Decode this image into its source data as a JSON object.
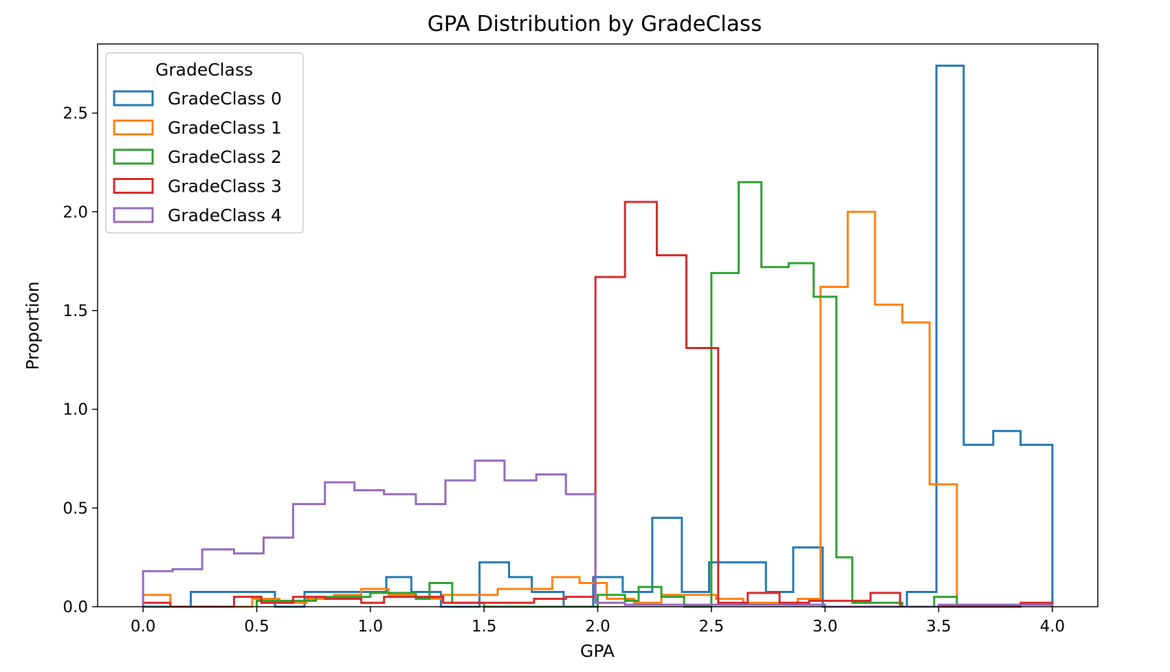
{
  "chart_data": {
    "type": "histogram",
    "title": "GPA Distribution by GradeClass",
    "xlabel": "GPA",
    "ylabel": "Proportion",
    "xlim": [
      -0.2,
      4.2
    ],
    "ylim": [
      0,
      2.85
    ],
    "xticks": [
      0.0,
      0.5,
      1.0,
      1.5,
      2.0,
      2.5,
      3.0,
      3.5,
      4.0
    ],
    "xtick_labels": [
      "0.0",
      "0.5",
      "1.0",
      "1.5",
      "2.0",
      "2.5",
      "3.0",
      "3.5",
      "4.0"
    ],
    "yticks": [
      0.0,
      0.5,
      1.0,
      1.5,
      2.0,
      2.5
    ],
    "ytick_labels": [
      "0.0",
      "0.5",
      "1.0",
      "1.5",
      "2.0",
      "2.5"
    ],
    "legend": {
      "title": "GradeClass",
      "placement": "upper-left"
    },
    "series": [
      {
        "name": "GradeClass 0",
        "color": "#1f77b4",
        "edges": [
          0.0,
          0.21,
          0.58,
          0.71,
          1.07,
          1.18,
          1.31,
          1.48,
          1.61,
          1.71,
          1.85,
          1.98,
          2.11,
          2.24,
          2.37,
          2.49,
          2.74,
          2.86,
          2.99,
          3.11,
          3.24,
          3.36,
          3.49,
          3.61,
          3.74,
          3.86,
          4.0
        ],
        "values": [
          0.0,
          0.075,
          0.0,
          0.075,
          0.15,
          0.075,
          0.0,
          0.225,
          0.15,
          0.075,
          0.0,
          0.15,
          0.075,
          0.45,
          0.075,
          0.225,
          0.075,
          0.3,
          0.0,
          0.0,
          0.0,
          0.075,
          2.74,
          0.82,
          0.89,
          0.82
        ]
      },
      {
        "name": "GradeClass 1",
        "color": "#ff7f0e",
        "edges": [
          0.0,
          0.12,
          0.48,
          0.6,
          0.72,
          0.84,
          0.96,
          1.08,
          1.2,
          1.32,
          1.44,
          1.56,
          1.68,
          1.8,
          1.92,
          2.04,
          2.16,
          2.28,
          2.4,
          2.52,
          2.64,
          2.76,
          2.88,
          2.98,
          3.1,
          3.22,
          3.34,
          3.46,
          3.58
        ],
        "values": [
          0.06,
          0.0,
          0.04,
          0.02,
          0.04,
          0.06,
          0.09,
          0.06,
          0.04,
          0.06,
          0.06,
          0.09,
          0.09,
          0.15,
          0.12,
          0.04,
          0.02,
          0.06,
          0.06,
          0.04,
          0.02,
          0.02,
          0.04,
          1.62,
          2.0,
          1.53,
          1.44,
          0.62
        ]
      },
      {
        "name": "GradeClass 2",
        "color": "#2ca02c",
        "edges": [
          0.5,
          0.76,
          1.0,
          1.2,
          1.26,
          1.36,
          1.5,
          2.0,
          2.12,
          2.18,
          2.28,
          2.38,
          2.5,
          2.62,
          2.72,
          2.84,
          2.95,
          3.05,
          3.12,
          3.22,
          3.34,
          3.48,
          3.58
        ],
        "values": [
          0.03,
          0.05,
          0.07,
          0.04,
          0.12,
          0.02,
          0.0,
          0.06,
          0.03,
          0.1,
          0.05,
          0.0,
          1.69,
          2.15,
          1.72,
          1.74,
          1.57,
          0.25,
          0.02,
          0.02,
          0.0,
          0.05
        ]
      },
      {
        "name": "GradeClass 3",
        "color": "#d62728",
        "edges": [
          0.0,
          0.12,
          0.4,
          0.52,
          0.66,
          0.8,
          0.96,
          1.06,
          1.32,
          1.4,
          1.72,
          1.86,
          1.99,
          2.12,
          2.26,
          2.39,
          2.53,
          2.66,
          2.8,
          2.93,
          3.06,
          3.2,
          3.33,
          3.46,
          3.86,
          4.0
        ],
        "values": [
          0.02,
          0.0,
          0.05,
          0.02,
          0.05,
          0.04,
          0.02,
          0.05,
          0.02,
          0.02,
          0.04,
          0.05,
          1.67,
          2.05,
          1.78,
          1.31,
          0.02,
          0.07,
          0.02,
          0.03,
          0.03,
          0.07,
          0.0,
          0.0,
          0.02
        ]
      },
      {
        "name": "GradeClass 4",
        "color": "#9467bd",
        "edges": [
          0.0,
          0.13,
          0.26,
          0.4,
          0.53,
          0.66,
          0.8,
          0.93,
          1.06,
          1.2,
          1.33,
          1.46,
          1.59,
          1.73,
          1.86,
          1.99,
          2.12,
          2.5,
          3.0,
          3.5,
          4.0
        ],
        "values": [
          0.18,
          0.19,
          0.29,
          0.27,
          0.35,
          0.52,
          0.63,
          0.59,
          0.57,
          0.52,
          0.64,
          0.74,
          0.64,
          0.67,
          0.57,
          0.02,
          0.01,
          0.01,
          0.0,
          0.01
        ]
      }
    ]
  }
}
